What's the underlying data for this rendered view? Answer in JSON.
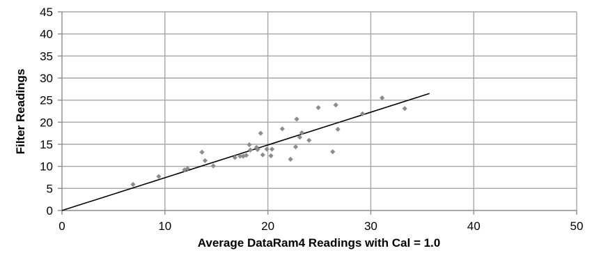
{
  "chart_data": {
    "type": "scatter",
    "xlabel": "Average DataRam4 Readings with Cal = 1.0",
    "ylabel": "Filter Readings",
    "xlim": [
      0,
      50
    ],
    "ylim": [
      0,
      45
    ],
    "xticks": [
      0,
      10,
      20,
      30,
      40,
      50
    ],
    "yticks": [
      0,
      5,
      10,
      15,
      20,
      25,
      30,
      35,
      40,
      45
    ],
    "grid": true,
    "legend": "none",
    "colors": {
      "points": "#8c8c8c",
      "trendline": "#000000",
      "grid": "#a6a6a6"
    },
    "series": [
      {
        "points": [
          [
            6.9,
            5.9
          ],
          [
            9.4,
            7.7
          ],
          [
            11.9,
            9.2
          ],
          [
            12.2,
            9.5
          ],
          [
            13.6,
            13.2
          ],
          [
            13.9,
            11.3
          ],
          [
            14.7,
            10.1
          ],
          [
            16.8,
            12.0
          ],
          [
            17.3,
            12.3
          ],
          [
            17.6,
            12.3
          ],
          [
            17.9,
            12.5
          ],
          [
            18.2,
            14.9
          ],
          [
            18.3,
            13.7
          ],
          [
            18.9,
            14.3
          ],
          [
            19.0,
            13.8
          ],
          [
            19.3,
            17.5
          ],
          [
            19.5,
            12.6
          ],
          [
            19.9,
            13.9
          ],
          [
            20.3,
            12.4
          ],
          [
            20.4,
            13.9
          ],
          [
            21.4,
            18.5
          ],
          [
            22.2,
            11.6
          ],
          [
            22.7,
            14.4
          ],
          [
            22.8,
            20.7
          ],
          [
            23.1,
            16.6
          ],
          [
            23.3,
            17.6
          ],
          [
            24.0,
            15.9
          ],
          [
            24.9,
            23.3
          ],
          [
            26.3,
            13.3
          ],
          [
            26.6,
            23.9
          ],
          [
            26.8,
            18.4
          ],
          [
            29.2,
            21.9
          ],
          [
            31.1,
            25.5
          ],
          [
            33.3,
            23.1
          ]
        ]
      }
    ],
    "trendline": {
      "x": [
        0,
        35.7
      ],
      "y": [
        0,
        26.5
      ]
    }
  }
}
